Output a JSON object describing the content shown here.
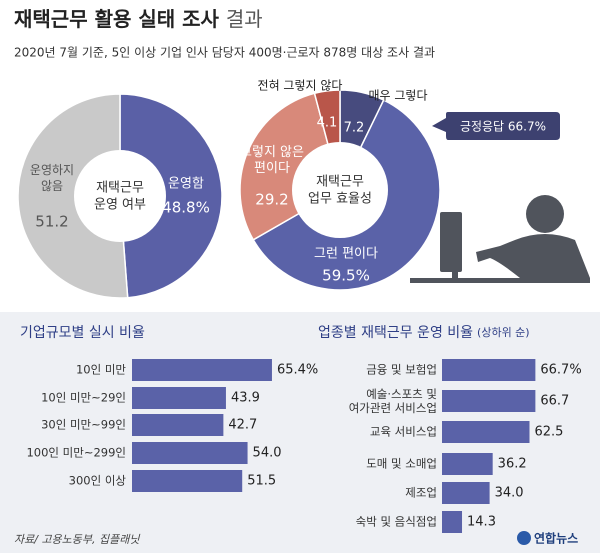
{
  "title": "재택근무 활용 실태 조사",
  "title_suffix": "결과",
  "subtitle": "2020년 7월 기준, 5인 이상 기업 인사 담당자 400명·근로자 878명 대상 조사 결과",
  "chart_data": [
    {
      "type": "donut",
      "center_label": "재택근무\n운영 여부",
      "categories": [
        "운영함",
        "운영하지\n않음"
      ],
      "values": [
        48.8,
        51.2
      ],
      "value_labels": [
        "48.8%",
        "51.2"
      ],
      "colors": [
        "#5a60a6",
        "#c9c9c9"
      ]
    },
    {
      "type": "donut",
      "center_label": "재택근무\n업무 효율성",
      "categories": [
        "매우 그렇다",
        "그런 편이다",
        "그렇지 않은\n편이다",
        "전혀 그렇지 않다"
      ],
      "values": [
        7.2,
        59.5,
        29.2,
        4.1
      ],
      "value_labels": [
        "7.2",
        "59.5%",
        "29.2",
        "4.1"
      ],
      "colors": [
        "#474b7e",
        "#5a62a8",
        "#d8897a",
        "#b9564a"
      ],
      "annotation": "긍정응답 66.7%"
    },
    {
      "type": "hbar",
      "title": "기업규모별 실시 비율",
      "categories": [
        "10인 미만",
        "10인 미만~29인",
        "30인 미만~99인",
        "100인 미만~299인",
        "300인 이상"
      ],
      "values": [
        65.4,
        43.9,
        42.7,
        54.0,
        51.5
      ],
      "value_labels": [
        "65.4%",
        "43.9",
        "42.7",
        "54.0",
        "51.5"
      ],
      "color": "#5a62a8"
    },
    {
      "type": "hbar",
      "title": "업종별 재택근무 운영 비율",
      "subtitle": "(상하위 순)",
      "categories": [
        "금융 및 보험업",
        "예술·스포츠 및\n여가관련 서비스업",
        "교육 서비스업",
        "도매 및 소매업",
        "제조업",
        "숙박 및 음식점업"
      ],
      "values": [
        66.7,
        66.7,
        62.5,
        36.2,
        34.0,
        14.3
      ],
      "value_labels": [
        "66.7%",
        "66.7",
        "62.5",
        "36.2",
        "34.0",
        "14.3"
      ],
      "color": "#5a62a8"
    }
  ],
  "source": "자료/ 고용노동부, 집플래닛",
  "logo": "연합뉴스"
}
